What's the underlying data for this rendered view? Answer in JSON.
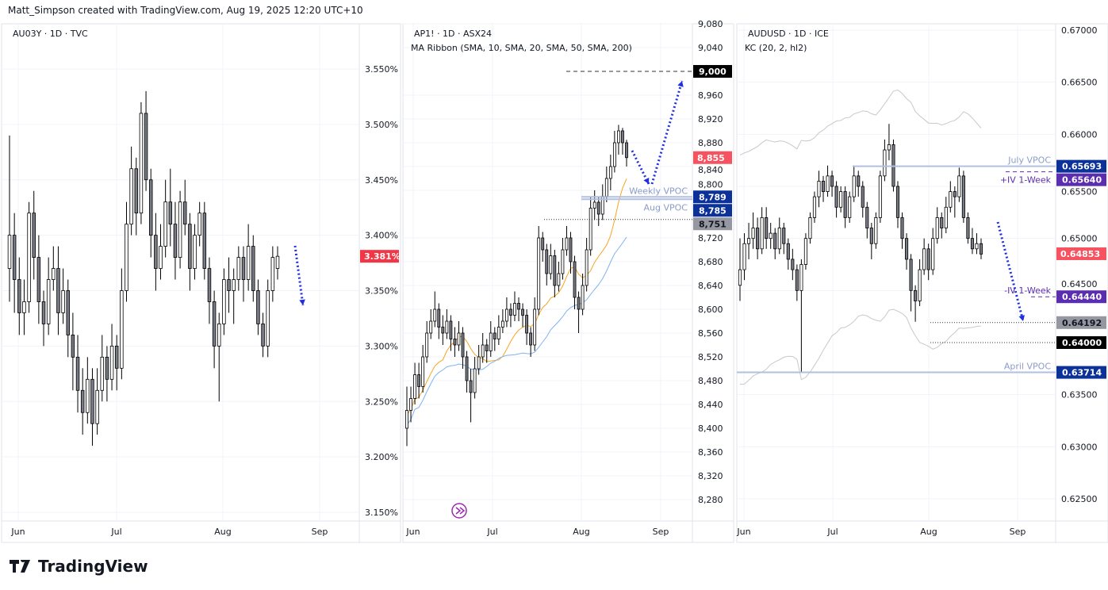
{
  "header": "Matt_Simpson created with TradingView.com, Aug 19, 2025 12:20 UTC+10",
  "logo": "TradingView",
  "colors": {
    "bull": "#ffffff",
    "bear": "#787b86",
    "wick": "#000000",
    "arrow": "#2030e0",
    "grid": "#f0f3fa",
    "vpoc": "#b2c0e0",
    "iv": "#5b2eb0"
  },
  "chart_data": [
    {
      "type": "candlestick",
      "title": "AU03Y · 1D · TVC",
      "xticks": [
        "Jun",
        "Jul",
        "Aug",
        "Sep"
      ],
      "yticks": [
        "3.550%",
        "3.500%",
        "3.450%",
        "3.400%",
        "3.350%",
        "3.300%",
        "3.250%",
        "3.200%",
        "3.150%"
      ],
      "ylim": [
        3.15,
        3.55
      ],
      "last": {
        "value": 3.381,
        "label": "3.381%",
        "color": "#f23645"
      },
      "candles": [
        [
          3.37,
          3.49,
          3.34,
          3.4
        ],
        [
          3.4,
          3.42,
          3.33,
          3.36
        ],
        [
          3.36,
          3.38,
          3.31,
          3.33
        ],
        [
          3.33,
          3.36,
          3.31,
          3.34
        ],
        [
          3.34,
          3.43,
          3.33,
          3.42
        ],
        [
          3.42,
          3.44,
          3.36,
          3.38
        ],
        [
          3.38,
          3.4,
          3.32,
          3.34
        ],
        [
          3.34,
          3.35,
          3.3,
          3.32
        ],
        [
          3.32,
          3.38,
          3.31,
          3.36
        ],
        [
          3.36,
          3.39,
          3.35,
          3.37
        ],
        [
          3.37,
          3.39,
          3.31,
          3.33
        ],
        [
          3.33,
          3.37,
          3.32,
          3.35
        ],
        [
          3.35,
          3.36,
          3.29,
          3.31
        ],
        [
          3.31,
          3.33,
          3.26,
          3.29
        ],
        [
          3.29,
          3.31,
          3.24,
          3.26
        ],
        [
          3.26,
          3.28,
          3.22,
          3.24
        ],
        [
          3.24,
          3.29,
          3.23,
          3.27
        ],
        [
          3.27,
          3.28,
          3.21,
          3.23
        ],
        [
          3.23,
          3.28,
          3.22,
          3.26
        ],
        [
          3.26,
          3.31,
          3.25,
          3.29
        ],
        [
          3.29,
          3.3,
          3.25,
          3.27
        ],
        [
          3.27,
          3.32,
          3.26,
          3.3
        ],
        [
          3.3,
          3.31,
          3.26,
          3.28
        ],
        [
          3.28,
          3.37,
          3.27,
          3.35
        ],
        [
          3.35,
          3.43,
          3.34,
          3.41
        ],
        [
          3.41,
          3.48,
          3.4,
          3.46
        ],
        [
          3.46,
          3.47,
          3.4,
          3.42
        ],
        [
          3.42,
          3.52,
          3.41,
          3.51
        ],
        [
          3.51,
          3.53,
          3.44,
          3.45
        ],
        [
          3.45,
          3.46,
          3.38,
          3.4
        ],
        [
          3.4,
          3.42,
          3.35,
          3.37
        ],
        [
          3.37,
          3.41,
          3.36,
          3.39
        ],
        [
          3.39,
          3.45,
          3.38,
          3.43
        ],
        [
          3.43,
          3.46,
          3.39,
          3.41
        ],
        [
          3.41,
          3.43,
          3.36,
          3.38
        ],
        [
          3.38,
          3.44,
          3.37,
          3.43
        ],
        [
          3.43,
          3.45,
          3.4,
          3.41
        ],
        [
          3.41,
          3.42,
          3.35,
          3.37
        ],
        [
          3.37,
          3.41,
          3.36,
          3.4
        ],
        [
          3.4,
          3.43,
          3.39,
          3.42
        ],
        [
          3.42,
          3.43,
          3.36,
          3.37
        ],
        [
          3.37,
          3.38,
          3.32,
          3.34
        ],
        [
          3.34,
          3.35,
          3.28,
          3.3
        ],
        [
          3.3,
          3.33,
          3.25,
          3.32
        ],
        [
          3.32,
          3.37,
          3.31,
          3.36
        ],
        [
          3.36,
          3.38,
          3.33,
          3.35
        ],
        [
          3.35,
          3.37,
          3.32,
          3.36
        ],
        [
          3.36,
          3.39,
          3.35,
          3.38
        ],
        [
          3.38,
          3.39,
          3.34,
          3.36
        ],
        [
          3.36,
          3.41,
          3.35,
          3.39
        ],
        [
          3.39,
          3.4,
          3.34,
          3.35
        ],
        [
          3.35,
          3.36,
          3.31,
          3.32
        ],
        [
          3.32,
          3.33,
          3.29,
          3.3
        ],
        [
          3.3,
          3.36,
          3.29,
          3.35
        ],
        [
          3.35,
          3.39,
          3.34,
          3.38
        ],
        [
          3.37,
          3.39,
          3.36,
          3.381
        ]
      ],
      "levels": []
    },
    {
      "type": "candlestick",
      "title": "AP1! · 1D · ASX24",
      "subtitle": "MA Ribbon (SMA, 10, SMA, 20, SMA, 50, SMA, 200)",
      "xticks": [
        "Jun",
        "Jul",
        "Aug",
        "Sep"
      ],
      "yticks": [
        "9,080",
        "9,040",
        "8,960",
        "8,920",
        "8,880",
        "8,840",
        "8,800",
        "8,720",
        "8,680",
        "8,640",
        "8,600",
        "8,560",
        "8,520",
        "8,480",
        "8,440",
        "8,400",
        "8,360",
        "8,320",
        "8,280"
      ],
      "ylim": [
        8280,
        9080
      ],
      "last": {
        "value": 8855,
        "label": "8,855",
        "color": "#f7525f"
      },
      "candles": [
        [
          8400,
          8470,
          8370,
          8430
        ],
        [
          8430,
          8470,
          8410,
          8450
        ],
        [
          8450,
          8510,
          8440,
          8490
        ],
        [
          8490,
          8510,
          8450,
          8470
        ],
        [
          8470,
          8540,
          8460,
          8520
        ],
        [
          8520,
          8580,
          8510,
          8560
        ],
        [
          8560,
          8600,
          8550,
          8580
        ],
        [
          8580,
          8630,
          8570,
          8600
        ],
        [
          8600,
          8610,
          8550,
          8570
        ],
        [
          8570,
          8590,
          8540,
          8560
        ],
        [
          8560,
          8600,
          8550,
          8580
        ],
        [
          8580,
          8590,
          8530,
          8550
        ],
        [
          8550,
          8570,
          8520,
          8540
        ],
        [
          8540,
          8580,
          8530,
          8560
        ],
        [
          8560,
          8570,
          8500,
          8520
        ],
        [
          8520,
          8530,
          8460,
          8480
        ],
        [
          8480,
          8500,
          8410,
          8460
        ],
        [
          8460,
          8520,
          8450,
          8500
        ],
        [
          8500,
          8540,
          8490,
          8520
        ],
        [
          8520,
          8560,
          8510,
          8540
        ],
        [
          8540,
          8550,
          8510,
          8530
        ],
        [
          8530,
          8580,
          8520,
          8560
        ],
        [
          8560,
          8570,
          8530,
          8550
        ],
        [
          8550,
          8590,
          8540,
          8570
        ],
        [
          8570,
          8600,
          8560,
          8580
        ],
        [
          8580,
          8620,
          8570,
          8600
        ],
        [
          8600,
          8610,
          8570,
          8590
        ],
        [
          8590,
          8630,
          8580,
          8610
        ],
        [
          8610,
          8620,
          8580,
          8600
        ],
        [
          8600,
          8610,
          8570,
          8590
        ],
        [
          8590,
          8600,
          8540,
          8560
        ],
        [
          8560,
          8570,
          8520,
          8540
        ],
        [
          8540,
          8620,
          8530,
          8600
        ],
        [
          8600,
          8740,
          8590,
          8720
        ],
        [
          8720,
          8730,
          8680,
          8700
        ],
        [
          8700,
          8710,
          8640,
          8660
        ],
        [
          8660,
          8710,
          8650,
          8690
        ],
        [
          8690,
          8700,
          8620,
          8640
        ],
        [
          8640,
          8680,
          8630,
          8660
        ],
        [
          8660,
          8720,
          8650,
          8700
        ],
        [
          8700,
          8740,
          8690,
          8720
        ],
        [
          8720,
          8730,
          8660,
          8680
        ],
        [
          8680,
          8690,
          8600,
          8620
        ],
        [
          8620,
          8630,
          8560,
          8600
        ],
        [
          8600,
          8660,
          8590,
          8640
        ],
        [
          8640,
          8720,
          8630,
          8700
        ],
        [
          8700,
          8790,
          8690,
          8770
        ],
        [
          8770,
          8800,
          8750,
          8780
        ],
        [
          8780,
          8790,
          8740,
          8760
        ],
        [
          8760,
          8810,
          8750,
          8790
        ],
        [
          8790,
          8840,
          8780,
          8820
        ],
        [
          8820,
          8860,
          8800,
          8840
        ],
        [
          8840,
          8900,
          8830,
          8880
        ],
        [
          8880,
          8910,
          8860,
          8900
        ],
        [
          8900,
          8905,
          8860,
          8880
        ],
        [
          8880,
          8885,
          8840,
          8855
        ]
      ],
      "levels": [
        {
          "value": 9000,
          "label": "9,000",
          "bg": "#000000",
          "style": "dashed",
          "text": ""
        },
        {
          "value": 8789,
          "label": "8,789",
          "bg": "#0c3299",
          "style": "solid",
          "text": "Weekly VPOC"
        },
        {
          "value": 8785,
          "label": "8,785",
          "bg": "#0c3299",
          "style": "solid",
          "text": "Aug VPOC"
        },
        {
          "value": 8751,
          "label": "8,751",
          "bg": "#9598a1",
          "style": "dotted",
          "text": ""
        }
      ]
    },
    {
      "type": "candlestick",
      "title": "AUDUSD · 1D · ICE",
      "subtitle": "KC (20, 2, hl2)",
      "xticks": [
        "Jun",
        "Jul",
        "Aug",
        "Sep"
      ],
      "yticks": [
        "0.67000",
        "0.66500",
        "0.66000",
        "0.65500",
        "0.65000",
        "0.64500",
        "0.63500",
        "0.63000",
        "0.62500"
      ],
      "ylim": [
        0.625,
        0.67
      ],
      "last": {
        "value": 0.64853,
        "label": "0.64853",
        "color": "#f7525f"
      },
      "candles": [
        [
          0.6455,
          0.65,
          0.644,
          0.647
        ],
        [
          0.647,
          0.6505,
          0.646,
          0.6495
        ],
        [
          0.6495,
          0.6515,
          0.648,
          0.65
        ],
        [
          0.65,
          0.6525,
          0.649,
          0.651
        ],
        [
          0.651,
          0.652,
          0.648,
          0.649
        ],
        [
          0.649,
          0.653,
          0.6485,
          0.652
        ],
        [
          0.652,
          0.653,
          0.649,
          0.65
        ],
        [
          0.65,
          0.6515,
          0.649,
          0.6505
        ],
        [
          0.6505,
          0.651,
          0.648,
          0.649
        ],
        [
          0.649,
          0.652,
          0.6485,
          0.651
        ],
        [
          0.651,
          0.6515,
          0.6485,
          0.6495
        ],
        [
          0.6495,
          0.65,
          0.647,
          0.648
        ],
        [
          0.648,
          0.649,
          0.646,
          0.647
        ],
        [
          0.647,
          0.6475,
          0.644,
          0.645
        ],
        [
          0.645,
          0.648,
          0.6372,
          0.6475
        ],
        [
          0.6475,
          0.6505,
          0.647,
          0.65
        ],
        [
          0.65,
          0.6525,
          0.6495,
          0.652
        ],
        [
          0.652,
          0.6545,
          0.6515,
          0.654
        ],
        [
          0.654,
          0.6565,
          0.653,
          0.6555
        ],
        [
          0.6555,
          0.656,
          0.6535,
          0.6545
        ],
        [
          0.6545,
          0.657,
          0.654,
          0.656
        ],
        [
          0.656,
          0.6565,
          0.654,
          0.655
        ],
        [
          0.655,
          0.6555,
          0.652,
          0.653
        ],
        [
          0.653,
          0.655,
          0.6525,
          0.6545
        ],
        [
          0.6545,
          0.655,
          0.651,
          0.652
        ],
        [
          0.652,
          0.6545,
          0.6515,
          0.654
        ],
        [
          0.654,
          0.657,
          0.6535,
          0.656
        ],
        [
          0.656,
          0.6565,
          0.654,
          0.655
        ],
        [
          0.655,
          0.6555,
          0.652,
          0.653
        ],
        [
          0.653,
          0.6535,
          0.65,
          0.651
        ],
        [
          0.651,
          0.6515,
          0.648,
          0.6495
        ],
        [
          0.6495,
          0.6525,
          0.649,
          0.652
        ],
        [
          0.652,
          0.6565,
          0.6515,
          0.656
        ],
        [
          0.656,
          0.6595,
          0.6555,
          0.6585
        ],
        [
          0.6585,
          0.661,
          0.6575,
          0.659
        ],
        [
          0.659,
          0.6595,
          0.6545,
          0.655
        ],
        [
          0.655,
          0.6555,
          0.651,
          0.652
        ],
        [
          0.652,
          0.6525,
          0.649,
          0.65
        ],
        [
          0.65,
          0.6505,
          0.647,
          0.648
        ],
        [
          0.648,
          0.6485,
          0.643,
          0.645
        ],
        [
          0.645,
          0.6455,
          0.642,
          0.644
        ],
        [
          0.644,
          0.648,
          0.6435,
          0.647
        ],
        [
          0.647,
          0.65,
          0.6465,
          0.649
        ],
        [
          0.649,
          0.6495,
          0.646,
          0.647
        ],
        [
          0.647,
          0.651,
          0.6465,
          0.65
        ],
        [
          0.65,
          0.653,
          0.6495,
          0.652
        ],
        [
          0.652,
          0.6525,
          0.65,
          0.651
        ],
        [
          0.651,
          0.654,
          0.6505,
          0.653
        ],
        [
          0.653,
          0.6555,
          0.6525,
          0.6545
        ],
        [
          0.6545,
          0.655,
          0.652,
          0.654
        ],
        [
          0.654,
          0.6568,
          0.6535,
          0.656
        ],
        [
          0.656,
          0.6565,
          0.6515,
          0.652
        ],
        [
          0.652,
          0.6525,
          0.6495,
          0.65
        ],
        [
          0.65,
          0.651,
          0.6485,
          0.649
        ],
        [
          0.649,
          0.6505,
          0.6485,
          0.6495
        ],
        [
          0.6495,
          0.65,
          0.648,
          0.6485
        ]
      ],
      "levels": [
        {
          "value": 0.65693,
          "label": "0.65693",
          "bg": "#0c3299",
          "style": "solid",
          "text": "July VPOC"
        },
        {
          "value": 0.6564,
          "label": "0.65640",
          "bg": "#5b2eb0",
          "style": "dashed",
          "text": "+IV 1-Week"
        },
        {
          "value": 0.6444,
          "label": "0.64440",
          "bg": "#5b2eb0",
          "style": "dashed",
          "text": "-IV 1-Week"
        },
        {
          "value": 0.64192,
          "label": "0.64192",
          "bg": "#9598a1",
          "style": "dotted",
          "text": ""
        },
        {
          "value": 0.64,
          "label": "0.64000",
          "bg": "#000000",
          "style": "dotted",
          "text": ""
        },
        {
          "value": 0.63714,
          "label": "0.63714",
          "bg": "#0c3299",
          "style": "solid",
          "text": "April VPOC"
        }
      ]
    }
  ]
}
